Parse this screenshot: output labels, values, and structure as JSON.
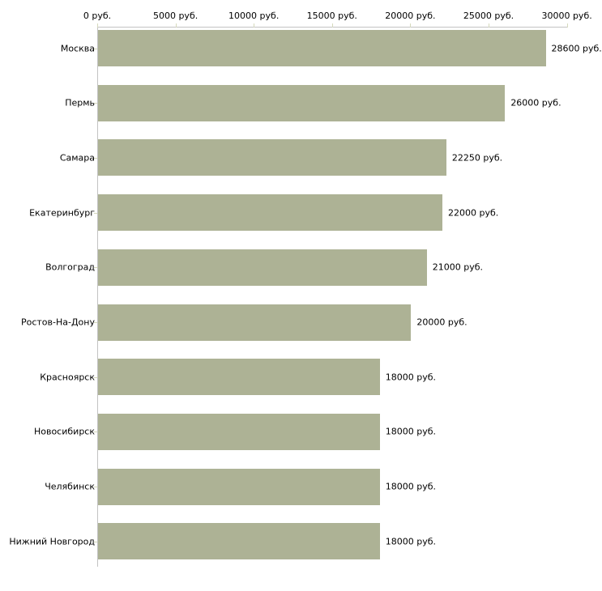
{
  "chart_data": {
    "type": "bar",
    "orientation": "horizontal",
    "title": "",
    "xlabel": "",
    "ylabel": "",
    "xlim": [
      0,
      30000
    ],
    "grid": false,
    "legend": false,
    "x_tick_values": [
      0,
      5000,
      10000,
      15000,
      20000,
      25000,
      30000
    ],
    "x_tick_labels": [
      "0 руб.",
      "5000 руб.",
      "10000 руб.",
      "15000 руб.",
      "20000 руб.",
      "25000 руб.",
      "30000 руб."
    ],
    "categories": [
      "Москва",
      "Пермь",
      "Самара",
      "Екатеринбург",
      "Волгоград",
      "Ростов-На-Дону",
      "Красноярск",
      "Новосибирск",
      "Челябинск",
      "Нижний Новгород"
    ],
    "values": [
      28600,
      26000,
      22250,
      22000,
      21000,
      20000,
      18000,
      18000,
      18000,
      18000
    ],
    "value_labels": [
      "28600 руб.",
      "26000 руб.",
      "22250 руб.",
      "22000 руб.",
      "21000 руб.",
      "20000 руб.",
      "18000 руб.",
      "18000 руб.",
      "18000 руб.",
      "18000 руб."
    ],
    "colors": {
      "bar": "#adb295",
      "axis_line": "#c3c3c3",
      "tick_mark": "#d5d9bc",
      "text": "#000000",
      "background": "#ffffff"
    }
  }
}
